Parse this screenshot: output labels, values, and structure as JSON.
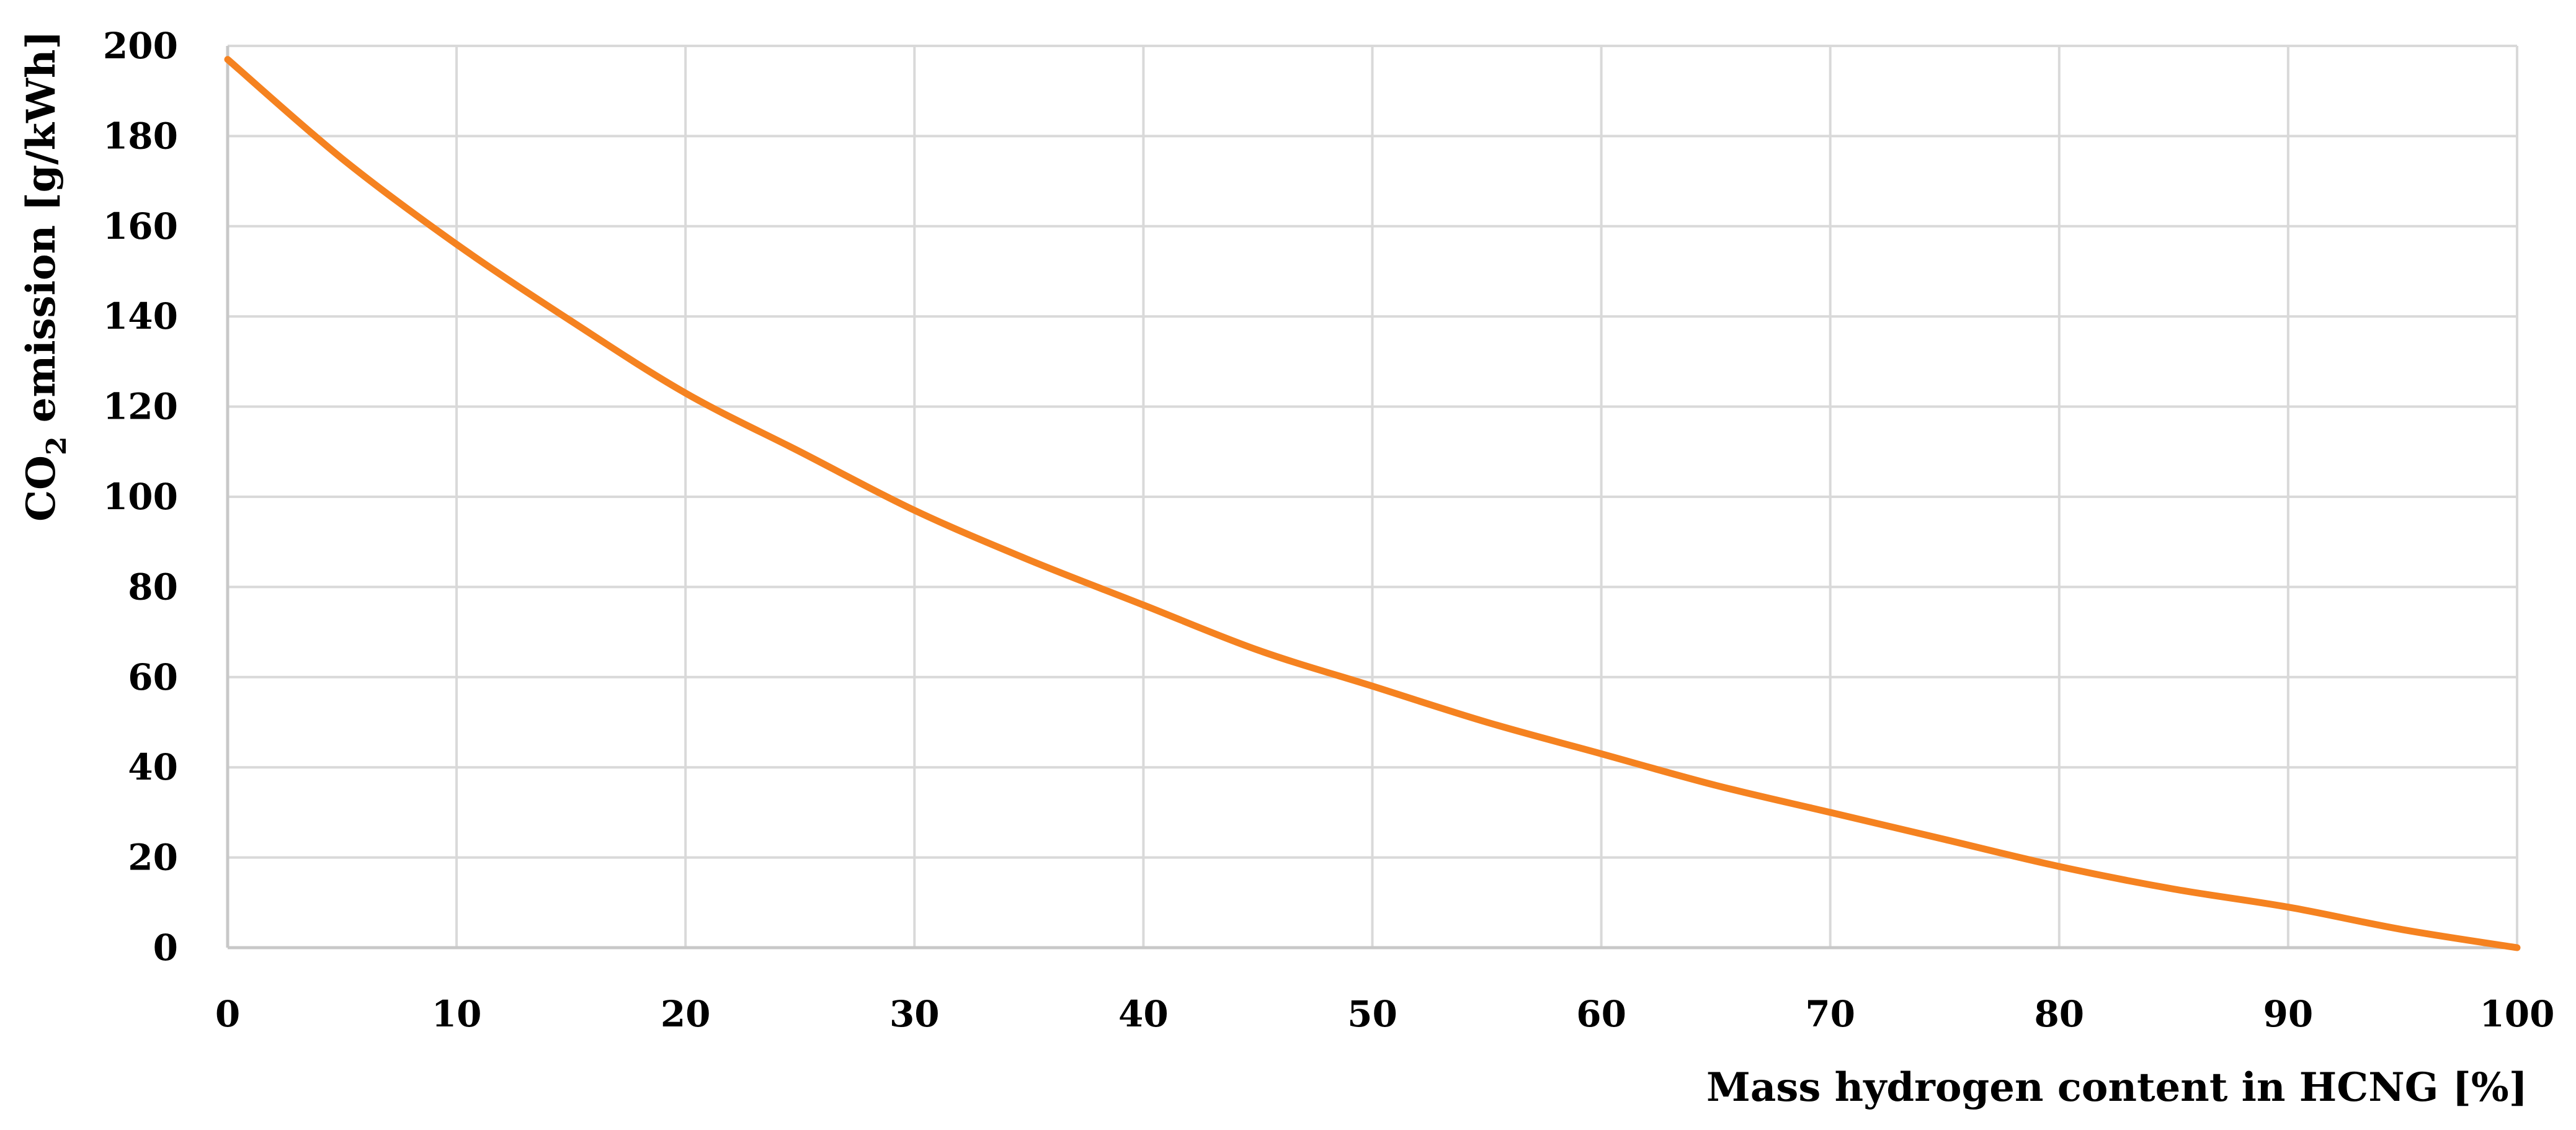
{
  "chart_data": {
    "type": "line",
    "xlabel": "Mass hydrogen content in HCNG [%]",
    "ylabel_parts": {
      "before": "CO",
      "subscript": "2",
      "after": " emission [g/kWh]"
    },
    "xlim": [
      0,
      100
    ],
    "ylim": [
      0,
      200
    ],
    "x_ticks": [
      0,
      10,
      20,
      30,
      40,
      50,
      60,
      70,
      80,
      90,
      100
    ],
    "y_ticks": [
      0,
      20,
      40,
      60,
      80,
      100,
      120,
      140,
      160,
      180,
      200
    ],
    "grid": true,
    "series": [
      {
        "color": "#f58220",
        "x": [
          0,
          5,
          10,
          15,
          20,
          25,
          30,
          35,
          40,
          45,
          50,
          55,
          60,
          65,
          70,
          75,
          80,
          85,
          90,
          95,
          100
        ],
        "y": [
          197,
          175,
          156,
          139,
          123,
          110,
          97,
          86,
          76,
          66,
          58,
          50,
          43,
          36,
          30,
          24,
          18,
          13,
          9,
          4,
          0
        ]
      }
    ]
  }
}
